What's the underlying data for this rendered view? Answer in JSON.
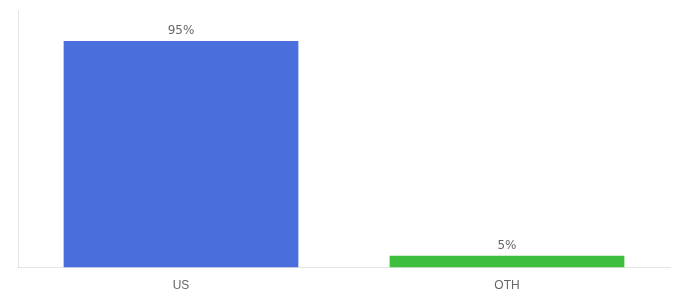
{
  "chart_data": {
    "type": "bar",
    "categories": [
      "US",
      "OTH"
    ],
    "values": [
      95,
      5
    ],
    "value_labels": [
      "95%",
      "5%"
    ],
    "colors": [
      "#4a6fdc",
      "#3dbf3d"
    ],
    "ylim": [
      0,
      108
    ],
    "data_labels": true,
    "tick_labels": "x",
    "grid": false
  }
}
